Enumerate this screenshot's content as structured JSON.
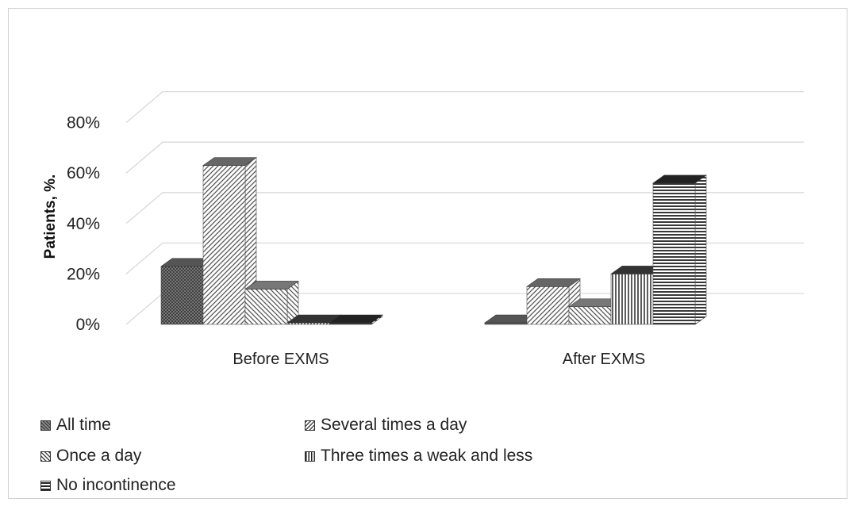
{
  "chart_data": {
    "type": "bar",
    "title": "",
    "xlabel": "",
    "ylabel": "Patients, %.",
    "ylim": [
      0,
      80
    ],
    "yticks": [
      "0%",
      "20%",
      "40%",
      "60%",
      "80%"
    ],
    "categories": [
      "Before EXMS",
      "After EXMS"
    ],
    "series": [
      {
        "name": "All time",
        "values": [
          23,
          0
        ],
        "pattern": "cross",
        "color": "#555555"
      },
      {
        "name": "Several times a day",
        "values": [
          63,
          15
        ],
        "pattern": "diag-right",
        "color": "#666666"
      },
      {
        "name": "Once a day",
        "values": [
          14,
          7
        ],
        "pattern": "diag-left",
        "color": "#777777"
      },
      {
        "name": "Three times a weak and less",
        "values": [
          0,
          20
        ],
        "pattern": "vertical",
        "color": "#333333"
      },
      {
        "name": "No incontinence",
        "values": [
          0,
          56
        ],
        "pattern": "horizontal",
        "color": "#222222"
      }
    ],
    "legend_position": "bottom",
    "grid": true,
    "style": "3d-clustered-column"
  }
}
